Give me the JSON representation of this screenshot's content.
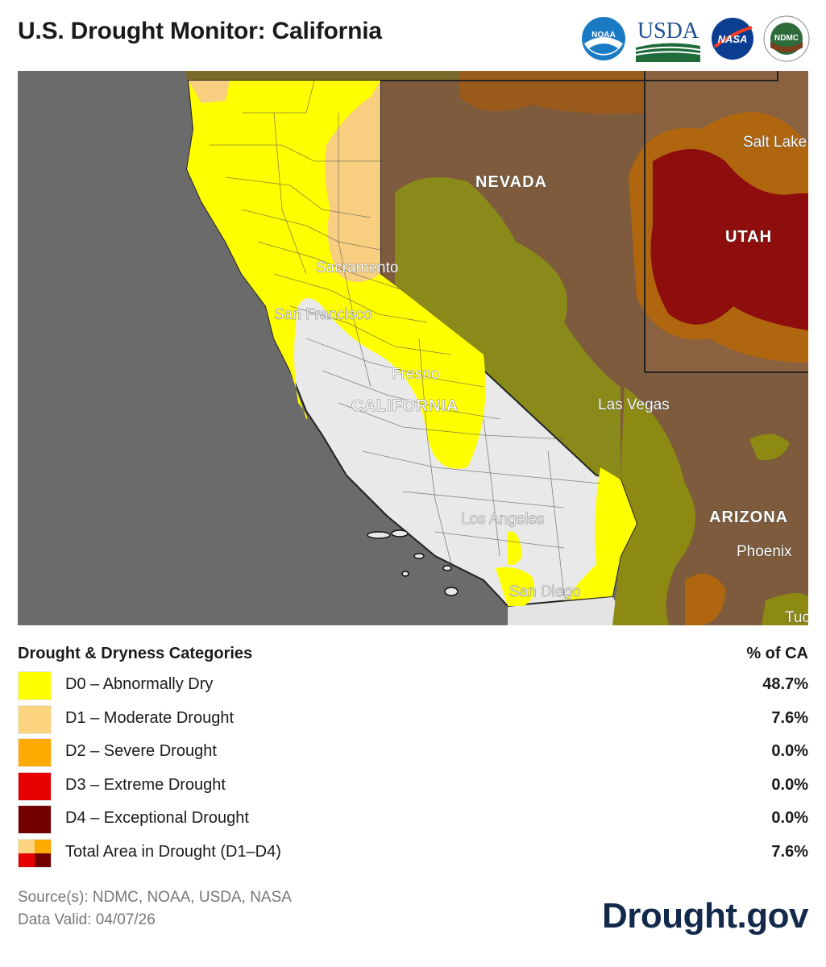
{
  "header": {
    "title": "U.S. Drought Monitor: California",
    "logos": [
      {
        "name": "noaa",
        "text": "NOAA"
      },
      {
        "name": "usda",
        "text": "USDA"
      },
      {
        "name": "nasa",
        "text": "NASA"
      },
      {
        "name": "ndmc",
        "text": "NDMC"
      }
    ]
  },
  "map": {
    "labels": {
      "nevada": "NEVADA",
      "utah": "UTAH",
      "arizona": "ARIZONA",
      "california": "CALIFORNIA",
      "salt_lake": "Salt Lake",
      "sacramento": "Sacramento",
      "san_francisco": "San Francisco",
      "fresno": "Fresno",
      "las_vegas": "Las Vegas",
      "los_angeles": "Los Angeles",
      "san_diego": "San Diego",
      "phoenix": "Phoenix",
      "tucson": "Tuc"
    }
  },
  "legend": {
    "title": "Drought & Dryness Categories",
    "pct_header": "% of CA",
    "rows": [
      {
        "label": "D0 – Abnormally Dry",
        "pct": "48.7%",
        "color": "#ffff00"
      },
      {
        "label": "D1 – Moderate Drought",
        "pct": "7.6%",
        "color": "#fcd37f"
      },
      {
        "label": "D2 – Severe Drought",
        "pct": "0.0%",
        "color": "#ffaa00"
      },
      {
        "label": "D3 – Extreme Drought",
        "pct": "0.0%",
        "color": "#e60000"
      },
      {
        "label": "D4 – Exceptional Drought",
        "pct": "0.0%",
        "color": "#730000"
      }
    ],
    "total": {
      "label": "Total Area in Drought (D1–D4)",
      "pct": "7.6%"
    }
  },
  "footer": {
    "source": "Source(s): NDMC, NOAA, USDA, NASA",
    "valid": "Data Valid: 04/07/26",
    "brand": "Drought.gov"
  }
}
